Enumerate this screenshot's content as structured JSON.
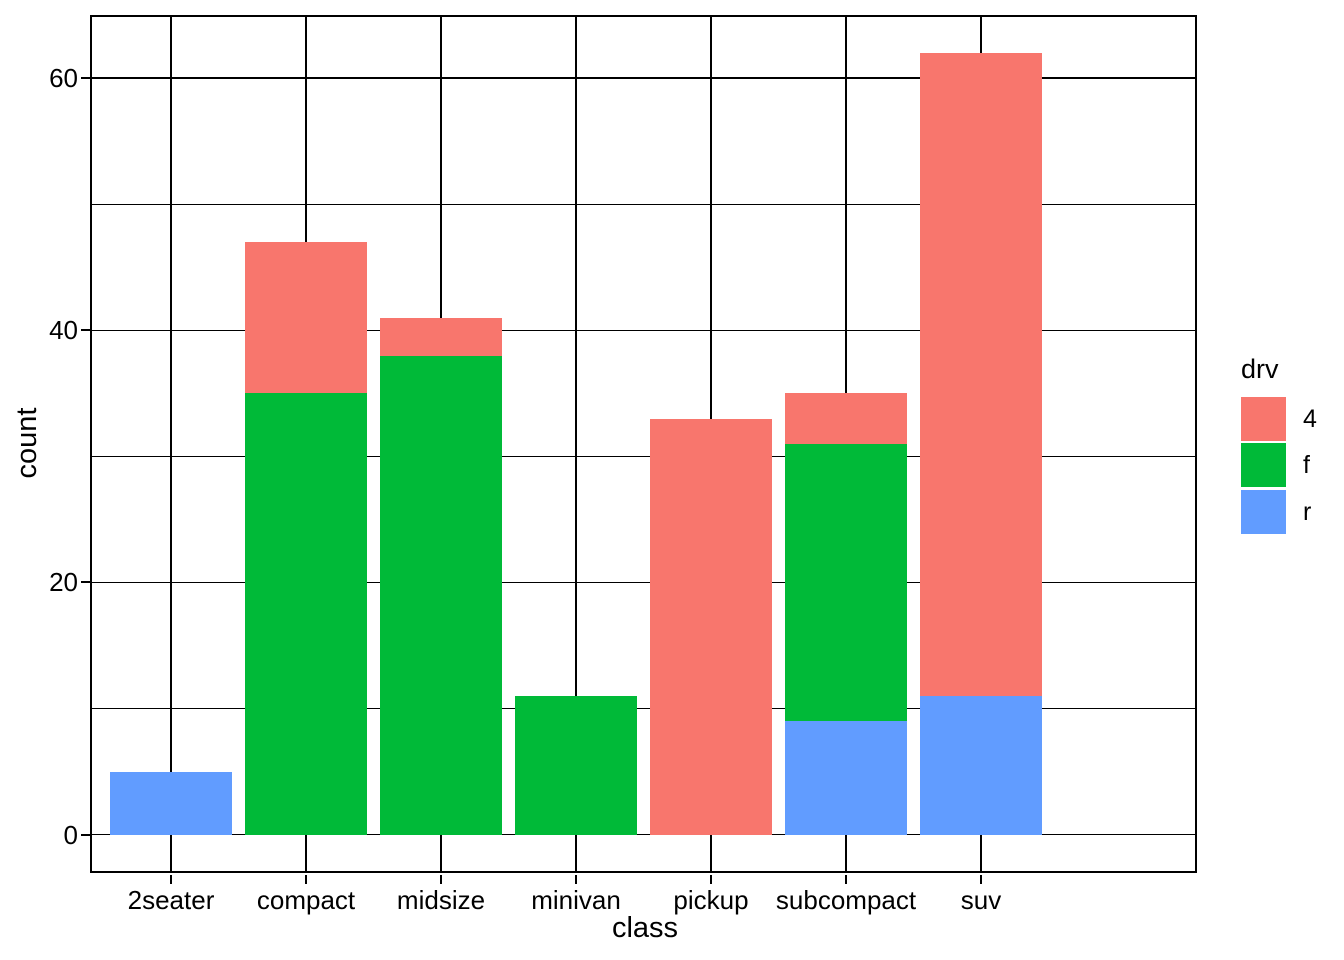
{
  "chart_data": {
    "type": "bar",
    "stacked": true,
    "title": "",
    "xlabel": "class",
    "ylabel": "count",
    "categories": [
      "2seater",
      "compact",
      "midsize",
      "minivan",
      "pickup",
      "subcompact",
      "suv"
    ],
    "series": [
      {
        "name": "4",
        "color": "#F8766D",
        "values": [
          0,
          12,
          3,
          0,
          33,
          4,
          51
        ]
      },
      {
        "name": "f",
        "color": "#00BA38",
        "values": [
          0,
          35,
          38,
          11,
          0,
          22,
          0
        ]
      },
      {
        "name": "r",
        "color": "#619CFF",
        "values": [
          5,
          0,
          0,
          0,
          0,
          9,
          11
        ]
      }
    ],
    "stack_order_bottom_to_top": [
      "r",
      "f",
      "4"
    ],
    "totals": [
      5,
      47,
      41,
      11,
      33,
      35,
      62
    ],
    "y_ticks": [
      0,
      20,
      40,
      60
    ],
    "y_tick_labels": [
      "0",
      "20",
      "40",
      "60"
    ],
    "y_gridlines": [
      0,
      10,
      20,
      30,
      40,
      50,
      60
    ],
    "ylim": [
      -3.1,
      65.1
    ],
    "bar_width_fraction": 0.9,
    "grid": {
      "horizontal": true,
      "vertical_at_category_centers": true,
      "color": "#000000"
    },
    "panel_border_color": "#000000",
    "background_color": "#FFFFFF",
    "text_color": "#000000",
    "legend": {
      "title": "drv",
      "position": "right",
      "entries": [
        {
          "label": "4",
          "color": "#F8766D"
        },
        {
          "label": "f",
          "color": "#00BA38"
        },
        {
          "label": "r",
          "color": "#619CFF"
        }
      ]
    }
  }
}
